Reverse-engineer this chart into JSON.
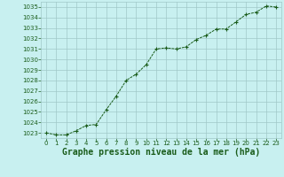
{
  "x": [
    0,
    1,
    2,
    3,
    4,
    5,
    6,
    7,
    8,
    9,
    10,
    11,
    12,
    13,
    14,
    15,
    16,
    17,
    18,
    19,
    20,
    21,
    22,
    23
  ],
  "y": [
    1023.0,
    1022.8,
    1022.8,
    1023.2,
    1023.7,
    1023.8,
    1025.2,
    1026.5,
    1028.0,
    1028.6,
    1029.5,
    1031.0,
    1031.1,
    1031.0,
    1031.2,
    1031.9,
    1032.3,
    1032.9,
    1032.9,
    1033.6,
    1034.3,
    1034.5,
    1035.1,
    1035.0
  ],
  "ylim": [
    1022.5,
    1035.5
  ],
  "xlim": [
    -0.5,
    23.5
  ],
  "yticks": [
    1023,
    1024,
    1025,
    1026,
    1027,
    1028,
    1029,
    1030,
    1031,
    1032,
    1033,
    1034,
    1035
  ],
  "xticks": [
    0,
    1,
    2,
    3,
    4,
    5,
    6,
    7,
    8,
    9,
    10,
    11,
    12,
    13,
    14,
    15,
    16,
    17,
    18,
    19,
    20,
    21,
    22,
    23
  ],
  "line_color": "#1a5c1a",
  "marker_color": "#1a5c1a",
  "bg_color": "#c8f0f0",
  "grid_color": "#a0c8c8",
  "xlabel": "Graphe pression niveau de la mer (hPa)",
  "xlabel_color": "#1a5c1a",
  "tick_color": "#1a5c1a",
  "tick_fontsize": 5.0,
  "xlabel_fontsize": 7.0
}
